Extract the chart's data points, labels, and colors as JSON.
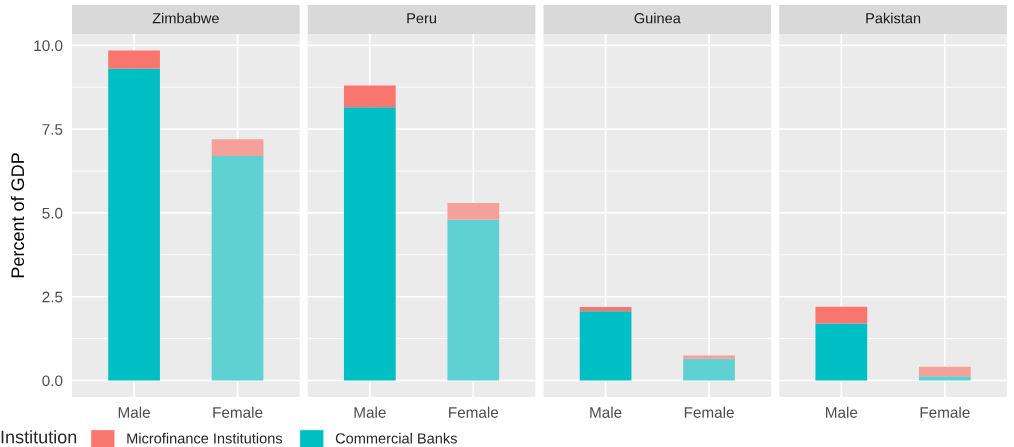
{
  "chart_data": [
    {
      "type": "bar",
      "title": "Zimbabwe",
      "ylabel": "Percent of GDP",
      "categories": [
        "Male",
        "Female"
      ],
      "stacked": true,
      "ylim": [
        -0.49,
        10.34
      ],
      "yticks": [
        {
          "value": 0,
          "label": "0.0"
        },
        {
          "value": 2.5,
          "label": "2.5"
        },
        {
          "value": 5,
          "label": "5.0"
        },
        {
          "value": 7.5,
          "label": "7.5"
        },
        {
          "value": 10,
          "label": "10.0"
        }
      ],
      "grid": true,
      "legend": "bottom",
      "legend_title": "Institution",
      "series": [
        {
          "name": "Commercial Banks",
          "color": "#00bfc4",
          "colors": [
            "#00bfc4",
            "#5fd1d3"
          ],
          "values": [
            9.3,
            6.7
          ]
        },
        {
          "name": "Microfinance Institutions",
          "color": "#f8766d",
          "colors": [
            "#f8766d",
            "#f4a09b"
          ],
          "values": [
            0.55,
            0.5
          ]
        }
      ]
    },
    {
      "type": "bar",
      "title": "Peru",
      "categories": [
        "Male",
        "Female"
      ],
      "stacked": true,
      "ylim": [
        -0.49,
        10.34
      ],
      "yticks": [
        0,
        2.5,
        5,
        7.5,
        10
      ],
      "grid": true,
      "tick_labels": "x",
      "series": [
        {
          "name": "Commercial Banks",
          "color": "#00bfc4",
          "colors": [
            "#00bfc4",
            "#5fd1d3"
          ],
          "values": [
            8.15,
            4.8
          ]
        },
        {
          "name": "Microfinance Institutions",
          "color": "#f8766d",
          "colors": [
            "#f8766d",
            "#f4a09b"
          ],
          "values": [
            0.65,
            0.5
          ]
        }
      ]
    },
    {
      "type": "bar",
      "title": "Guinea",
      "categories": [
        "Male",
        "Female"
      ],
      "stacked": true,
      "ylim": [
        -0.49,
        10.34
      ],
      "yticks": [
        0,
        2.5,
        5,
        7.5,
        10
      ],
      "grid": true,
      "tick_labels": "x",
      "series": [
        {
          "name": "Commercial Banks",
          "color": "#00bfc4",
          "colors": [
            "#00bfc4",
            "#5fd1d3"
          ],
          "values": [
            2.07,
            0.65
          ]
        },
        {
          "name": "Microfinance Institutions",
          "color": "#f8766d",
          "colors": [
            "#f8766d",
            "#f4a09b"
          ],
          "values": [
            0.12,
            0.1
          ]
        }
      ]
    },
    {
      "type": "bar",
      "title": "Pakistan",
      "categories": [
        "Male",
        "Female"
      ],
      "stacked": true,
      "ylim": [
        -0.49,
        10.34
      ],
      "yticks": [
        0,
        2.5,
        5,
        7.5,
        10
      ],
      "grid": true,
      "tick_labels": "x",
      "series": [
        {
          "name": "Commercial Banks",
          "color": "#00bfc4",
          "colors": [
            "#00bfc4",
            "#5fd1d3"
          ],
          "values": [
            1.7,
            0.13
          ]
        },
        {
          "name": "Microfinance Institutions",
          "color": "#f8766d",
          "colors": [
            "#f8766d",
            "#f4a09b"
          ],
          "values": [
            0.5,
            0.28
          ]
        }
      ]
    }
  ]
}
